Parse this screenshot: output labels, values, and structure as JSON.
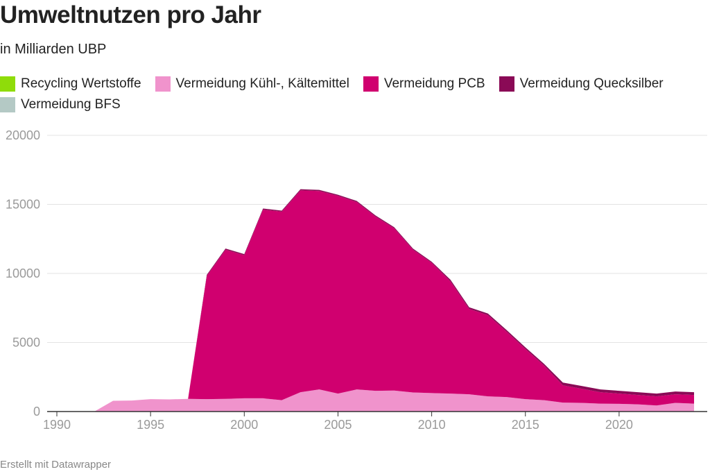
{
  "title": "Umweltnutzen pro Jahr",
  "subtitle": "in Milliarden UBP",
  "footer": "Erstellt mit Datawrapper",
  "chart_data": {
    "type": "area",
    "stacked": true,
    "x": [
      1990,
      1991,
      1992,
      1993,
      1994,
      1995,
      1996,
      1997,
      1998,
      1999,
      2000,
      2001,
      2002,
      2003,
      2004,
      2005,
      2006,
      2007,
      2008,
      2009,
      2010,
      2011,
      2012,
      2013,
      2014,
      2015,
      2016,
      2017,
      2018,
      2019,
      2020,
      2021,
      2022,
      2023,
      2024
    ],
    "xticks": [
      1990,
      1995,
      2000,
      2005,
      2010,
      2015,
      2020
    ],
    "yticks": [
      0,
      5000,
      10000,
      15000,
      20000
    ],
    "ylim": [
      0,
      20000
    ],
    "grid": true,
    "legend_position": "top",
    "series": [
      {
        "name": "Recycling Wertstoffe",
        "color": "#8fdc0a",
        "values": [
          0,
          0,
          0,
          0,
          0,
          0,
          0,
          0,
          0,
          0,
          0,
          0,
          0,
          0,
          0,
          0,
          0,
          0,
          0,
          0,
          0,
          0,
          0,
          0,
          0,
          0,
          0,
          0,
          0,
          0,
          0,
          0,
          0,
          0,
          0
        ]
      },
      {
        "name": "Vermeidung Kühl-, Kältemittel",
        "color": "#f093cc",
        "values": [
          0,
          0,
          0,
          780,
          800,
          900,
          880,
          920,
          900,
          920,
          960,
          960,
          820,
          1400,
          1600,
          1300,
          1600,
          1500,
          1520,
          1380,
          1340,
          1300,
          1250,
          1100,
          1050,
          900,
          820,
          650,
          630,
          570,
          560,
          520,
          440,
          630,
          570
        ]
      },
      {
        "name": "Vermeidung PCB",
        "color": "#d0006f",
        "values": [
          0,
          0,
          0,
          0,
          0,
          0,
          0,
          0,
          8920,
          10800,
          10360,
          13660,
          13650,
          14620,
          14370,
          14320,
          13570,
          12620,
          11750,
          10340,
          9430,
          8130,
          6180,
          5880,
          4730,
          3630,
          2510,
          1250,
          1020,
          830,
          740,
          680,
          660,
          620,
          630
        ]
      },
      {
        "name": "Vermeidung Quecksilber",
        "color": "#8a0a56",
        "values": [
          0,
          0,
          0,
          0,
          0,
          0,
          0,
          0,
          80,
          80,
          80,
          80,
          80,
          80,
          80,
          80,
          80,
          80,
          80,
          80,
          80,
          120,
          120,
          120,
          120,
          120,
          120,
          200,
          200,
          200,
          200,
          200,
          200,
          200,
          200
        ]
      },
      {
        "name": "Vermeidung BFS",
        "color": "#b4c9c5",
        "values": [
          0,
          0,
          0,
          0,
          0,
          0,
          0,
          0,
          0,
          0,
          0,
          0,
          0,
          0,
          0,
          0,
          0,
          0,
          0,
          0,
          0,
          0,
          0,
          0,
          0,
          0,
          0,
          0,
          0,
          0,
          0,
          0,
          0,
          0,
          0
        ]
      }
    ]
  }
}
